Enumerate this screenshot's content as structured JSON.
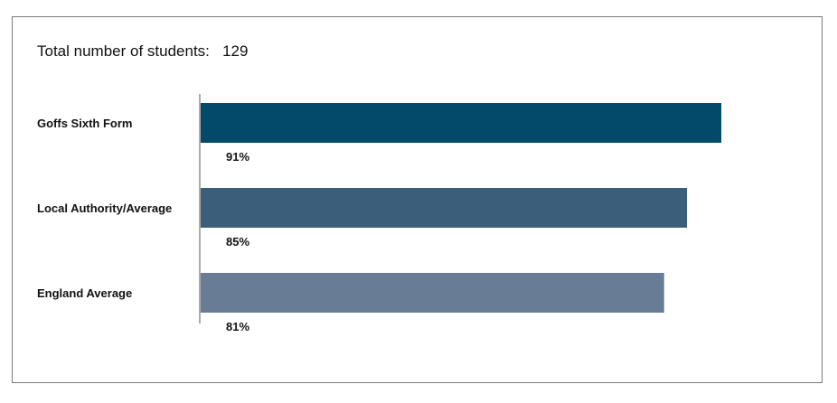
{
  "chart_data": {
    "type": "bar",
    "orientation": "horizontal",
    "title_label": "Total number of students:",
    "title_value": "129",
    "categories": [
      "Goffs Sixth Form",
      "Local Authority/Average",
      "England Average"
    ],
    "values": [
      91,
      85,
      81
    ],
    "value_labels": [
      "91%",
      "85%",
      "81%"
    ],
    "colors": [
      "#034a6a",
      "#3b5f7b",
      "#687c96"
    ],
    "xlim": [
      0,
      100
    ],
    "grid": false,
    "legend": "none"
  }
}
